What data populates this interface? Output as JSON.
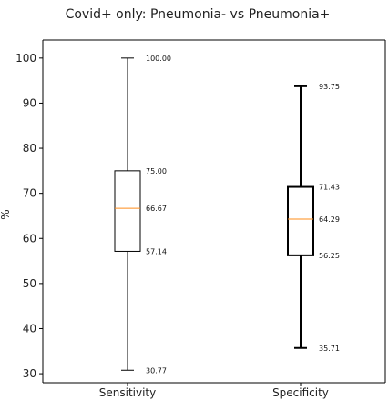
{
  "chart_data": {
    "type": "box",
    "title": "Covid+ only: Pneumonia- vs Pneumonia+",
    "ylabel": "%",
    "xlabel": "",
    "ylim": [
      28,
      104
    ],
    "yticks": [
      30,
      40,
      50,
      60,
      70,
      80,
      90,
      100
    ],
    "categories": [
      "Sensitivity",
      "Specificity"
    ],
    "boxes": [
      {
        "category": "Sensitivity",
        "whisker_low": 30.77,
        "q1": 57.14,
        "median": 66.67,
        "q3": 75.0,
        "whisker_high": 100.0,
        "labels": {
          "whisker_high": "100.00",
          "q3": "75.00",
          "median": "66.67",
          "q1": "57.14",
          "whisker_low": "30.77"
        }
      },
      {
        "category": "Specificity",
        "whisker_low": 35.71,
        "q1": 56.25,
        "median": 64.29,
        "q3": 71.43,
        "whisker_high": 93.75,
        "labels": {
          "whisker_high": "93.75",
          "q3": "71.43",
          "median": "64.29",
          "q1": "56.25",
          "whisker_low": "35.71"
        }
      }
    ],
    "colors": {
      "box": "#000000",
      "median": "#ff8c1a",
      "text": "#222222"
    },
    "grid": false
  }
}
